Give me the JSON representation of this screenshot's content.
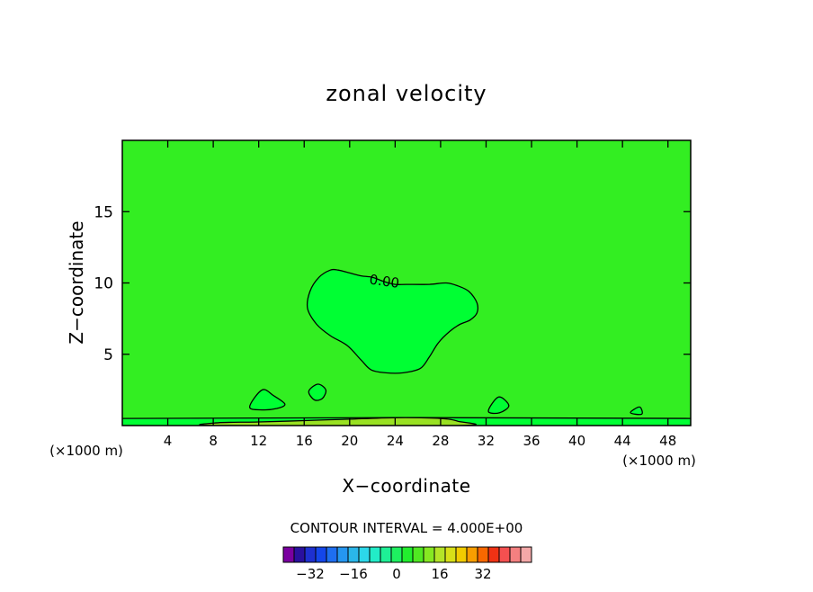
{
  "chart_data": {
    "type": "contour",
    "title": "zonal velocity",
    "xlabel": "X−coordinate",
    "ylabel": "Z−coordinate",
    "x_unit_left": "(×1000 m)",
    "x_unit_right": "(×1000 m)",
    "xlim": [
      0,
      50
    ],
    "ylim": [
      0,
      20
    ],
    "x_ticks": [
      4,
      8,
      12,
      16,
      20,
      24,
      28,
      32,
      36,
      40,
      44,
      48
    ],
    "y_ticks": [
      5,
      10,
      15
    ],
    "background_value_color": "#33ee22",
    "contour_label": "0.00",
    "regions": [
      {
        "name": "0.00 contour (upper blob)",
        "color": "#00ff33",
        "points": [
          [
            19,
            10.9
          ],
          [
            20,
            10.7
          ],
          [
            21,
            10.5
          ],
          [
            22,
            10.4
          ],
          [
            23,
            10.1
          ],
          [
            24,
            9.9
          ],
          [
            25,
            9.9
          ],
          [
            27,
            9.9
          ],
          [
            28.5,
            10.0
          ],
          [
            29.5,
            9.8
          ],
          [
            30.5,
            9.4
          ],
          [
            31.2,
            8.6
          ],
          [
            31.2,
            7.9
          ],
          [
            30.6,
            7.4
          ],
          [
            29.7,
            7.1
          ],
          [
            28.8,
            6.6
          ],
          [
            27.8,
            5.8
          ],
          [
            27.0,
            4.8
          ],
          [
            26.2,
            4.0
          ],
          [
            24.7,
            3.7
          ],
          [
            23.2,
            3.7
          ],
          [
            21.9,
            3.9
          ],
          [
            21.0,
            4.6
          ],
          [
            19.8,
            5.6
          ],
          [
            18.3,
            6.3
          ],
          [
            17.1,
            7.1
          ],
          [
            16.3,
            8.2
          ],
          [
            16.5,
            9.4
          ],
          [
            17.3,
            10.4
          ],
          [
            18.3,
            10.9
          ]
        ]
      },
      {
        "name": "surface band",
        "color": "#00ff33",
        "points": [
          [
            0,
            0.5
          ],
          [
            50,
            0.5
          ],
          [
            50,
            0
          ],
          [
            0,
            0
          ]
        ]
      },
      {
        "name": "surface band inner",
        "color": "#99e122",
        "points": [
          [
            8.5,
            0.2
          ],
          [
            12,
            0.25
          ],
          [
            16,
            0.35
          ],
          [
            20,
            0.45
          ],
          [
            24,
            0.55
          ],
          [
            28,
            0.5
          ],
          [
            29.5,
            0.3
          ],
          [
            29.5,
            0
          ],
          [
            8.5,
            0
          ]
        ]
      },
      {
        "name": "cell near x=12",
        "color": "#00ff33",
        "points": [
          [
            11.2,
            1.3
          ],
          [
            12.3,
            2.5
          ],
          [
            13.3,
            2.1
          ],
          [
            14.3,
            1.5
          ],
          [
            13.6,
            1.2
          ],
          [
            12.3,
            1.1
          ]
        ]
      },
      {
        "name": "cell near x=17",
        "color": "#00ff33",
        "points": [
          [
            16.4,
            2.4
          ],
          [
            17.2,
            2.9
          ],
          [
            17.9,
            2.5
          ],
          [
            17.6,
            1.9
          ],
          [
            16.9,
            1.8
          ]
        ]
      },
      {
        "name": "cell near x=33",
        "color": "#00ff33",
        "points": [
          [
            32.2,
            1.0
          ],
          [
            33.1,
            2.0
          ],
          [
            34.0,
            1.4
          ],
          [
            33.2,
            0.9
          ]
        ]
      },
      {
        "name": "cell near x=45",
        "color": "#00ff33",
        "points": [
          [
            44.7,
            0.9
          ],
          [
            45.5,
            1.3
          ],
          [
            45.7,
            0.8
          ]
        ]
      }
    ],
    "colorbar": {
      "title": "CONTOUR INTERVAL = 4.000E+00",
      "colors": [
        "#7a00a0",
        "#2a109e",
        "#1e30d0",
        "#1446ea",
        "#1e6ef0",
        "#2596f0",
        "#2ab6ea",
        "#2cd8ea",
        "#22ecc8",
        "#1ef096",
        "#1ef060",
        "#22ee2e",
        "#50e822",
        "#86e822",
        "#b4e428",
        "#d8e018",
        "#f2cc00",
        "#f89e00",
        "#f86800",
        "#f03214",
        "#f45050",
        "#f48080",
        "#f4a8a8"
      ],
      "tick_labels": [
        "−32",
        "−16",
        "0",
        "16",
        "32"
      ],
      "tick_index": [
        2,
        6,
        10,
        14,
        18
      ]
    }
  }
}
